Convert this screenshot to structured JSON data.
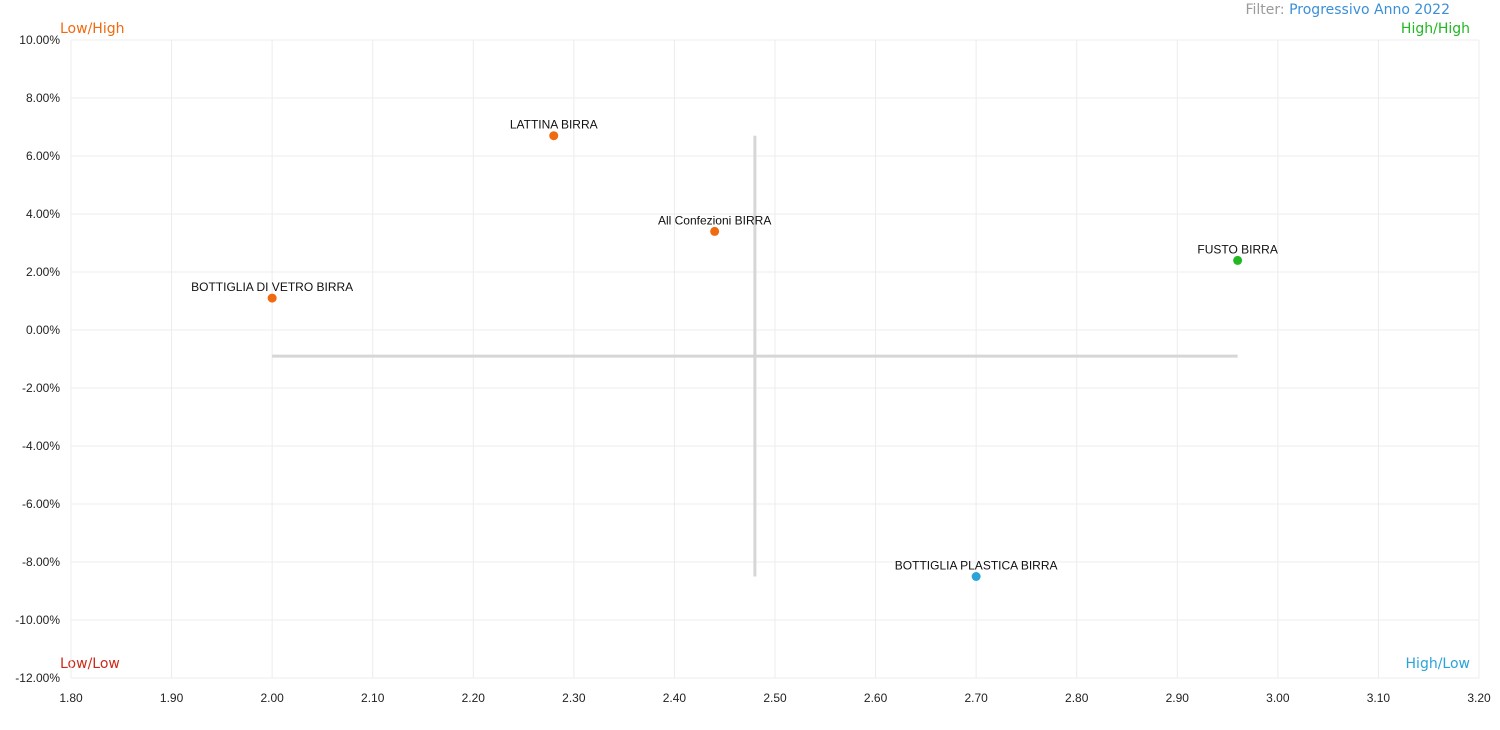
{
  "filter": {
    "label": "Filter:",
    "value": "Progressivo Anno 2022"
  },
  "quadrants": {
    "top_left": {
      "label": "Low/High",
      "color": "#f06a0f"
    },
    "top_right": {
      "label": "High/High",
      "color": "#22b822"
    },
    "bottom_left": {
      "label": "Low/Low",
      "color": "#cc2a1a"
    },
    "bottom_right": {
      "label": "High/Low",
      "color": "#2aa3d8"
    }
  },
  "chart_data": {
    "type": "scatter",
    "title": "",
    "xlabel": "",
    "ylabel": "",
    "xlim": [
      1.8,
      3.2
    ],
    "ylim": [
      -12,
      10
    ],
    "x_ticks": [
      "1.80",
      "1.90",
      "2.00",
      "2.10",
      "2.20",
      "2.30",
      "2.40",
      "2.50",
      "2.60",
      "2.70",
      "2.80",
      "2.90",
      "3.00",
      "3.10",
      "3.20"
    ],
    "y_ticks": [
      "10.00%",
      "8.00%",
      "6.00%",
      "4.00%",
      "2.00%",
      "0.00%",
      "-2.00%",
      "-4.00%",
      "-6.00%",
      "-8.00%",
      "-10.00%",
      "-12.00%"
    ],
    "grid": true,
    "crosshair": {
      "x": 2.48,
      "y": -0.9,
      "x_range": [
        2.0,
        2.96
      ],
      "y_range": [
        -8.5,
        6.7
      ]
    },
    "points": [
      {
        "label": "LATTINA BIRRA",
        "x": 2.28,
        "y": 6.7,
        "color": "#f06a0f"
      },
      {
        "label": "All Confezioni BIRRA",
        "x": 2.44,
        "y": 3.4,
        "color": "#f06a0f"
      },
      {
        "label": "BOTTIGLIA DI VETRO BIRRA",
        "x": 2.0,
        "y": 1.1,
        "color": "#f06a0f"
      },
      {
        "label": "FUSTO BIRRA",
        "x": 2.96,
        "y": 2.4,
        "color": "#22b822"
      },
      {
        "label": "BOTTIGLIA PLASTICA BIRRA",
        "x": 2.7,
        "y": -8.5,
        "color": "#2aa3d8"
      }
    ]
  }
}
